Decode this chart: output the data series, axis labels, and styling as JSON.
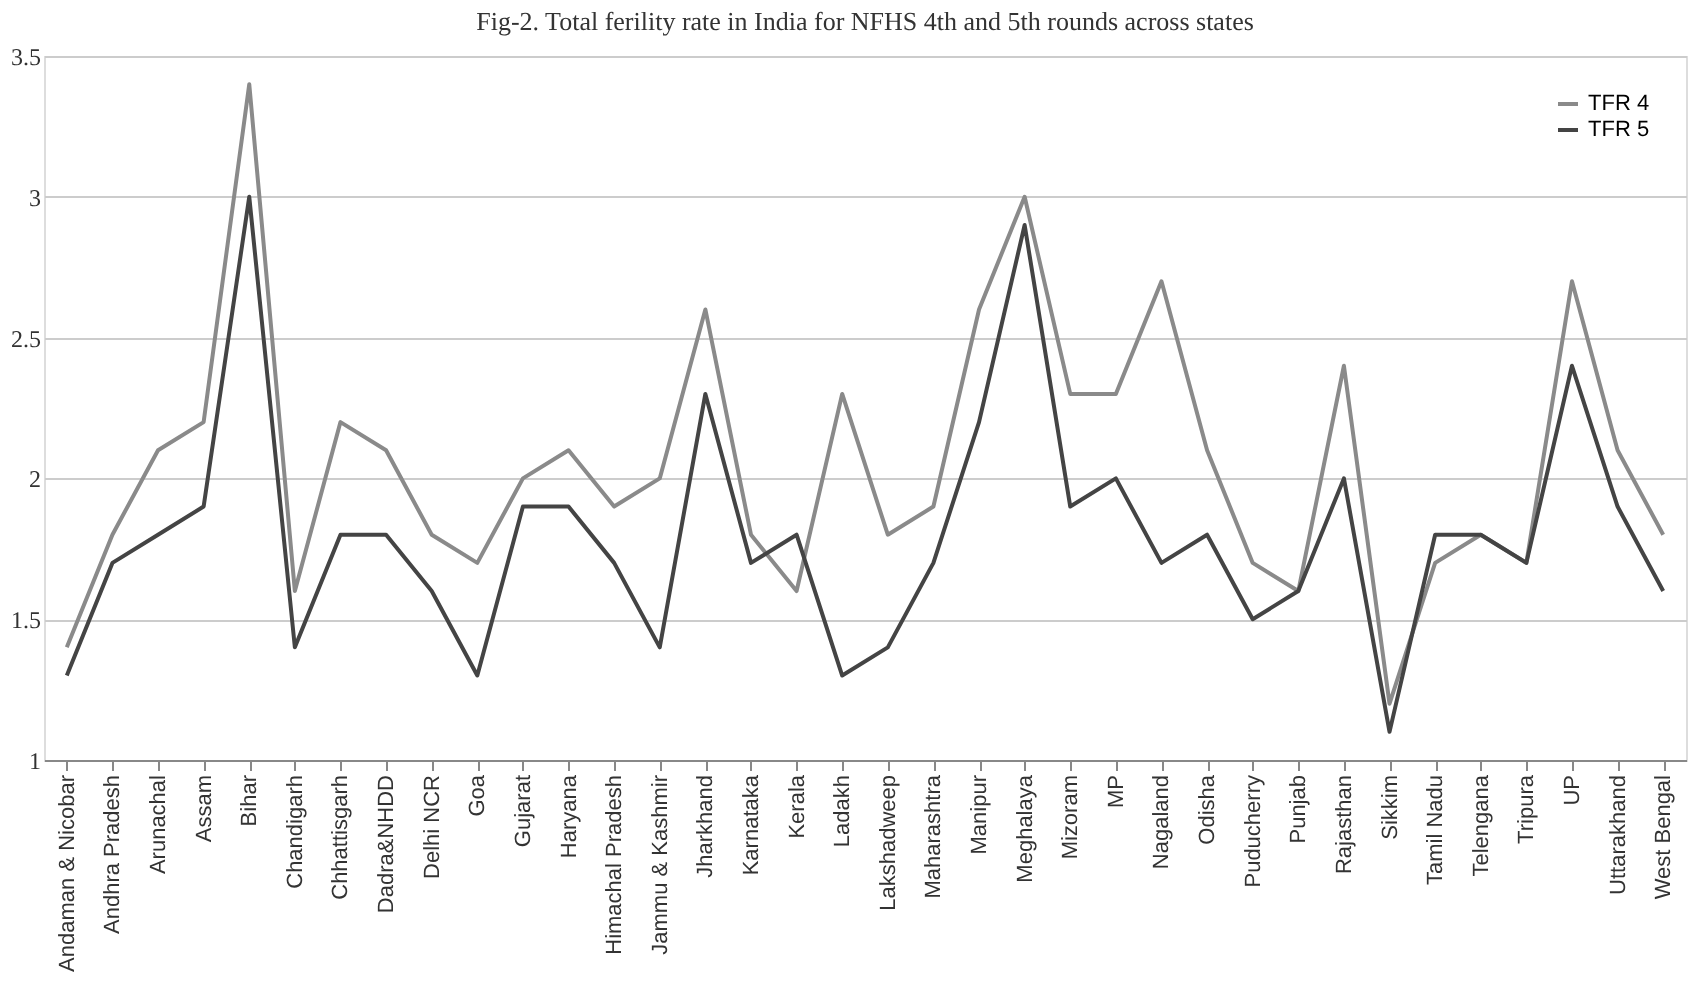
{
  "chart_data": {
    "type": "line",
    "title": "Fig-2. Total ferility rate in India for NFHS 4th and 5th rounds across states",
    "categories": [
      "Andaman & Nicobar",
      "Andhra Pradesh",
      "Arunachal",
      "Assam",
      "Bihar",
      "Chandigarh",
      "Chhattisgarh",
      "Dadra&NHDD",
      "Delhi NCR",
      "Goa",
      "Gujarat",
      "Haryana",
      "Himachal Pradesh",
      "Jammu & Kashmir",
      "Jharkhand",
      "Karnataka",
      "Kerala",
      "Ladakh",
      "Lakshadweep",
      "Maharashtra",
      "Manipur",
      "Meghalaya",
      "Mizoram",
      "MP",
      "Nagaland",
      "Odisha",
      "Puducherry",
      "Punjab",
      "Rajasthan",
      "Sikkim",
      "Tamil Nadu",
      "Telengana",
      "Tripura",
      "UP",
      "Uttarakhand",
      "West Bengal"
    ],
    "series": [
      {
        "name": "TFR 4",
        "color": "#8a8a8a",
        "values": [
          1.4,
          1.8,
          2.1,
          2.2,
          3.4,
          1.6,
          2.2,
          2.1,
          1.8,
          1.7,
          2.0,
          2.1,
          1.9,
          2.0,
          2.6,
          1.8,
          1.6,
          2.3,
          1.8,
          1.9,
          2.6,
          3.0,
          2.3,
          2.3,
          2.7,
          2.1,
          1.7,
          1.6,
          2.4,
          1.2,
          1.7,
          1.8,
          1.7,
          2.7,
          2.1,
          1.8
        ]
      },
      {
        "name": "TFR 5",
        "color": "#444444",
        "values": [
          1.3,
          1.7,
          1.8,
          1.9,
          3.0,
          1.4,
          1.8,
          1.8,
          1.6,
          1.3,
          1.9,
          1.9,
          1.7,
          1.4,
          2.3,
          1.7,
          1.8,
          1.3,
          1.4,
          1.7,
          2.2,
          2.9,
          1.9,
          2.0,
          1.7,
          1.8,
          1.5,
          1.6,
          2.0,
          1.1,
          1.8,
          1.8,
          1.7,
          2.4,
          1.9,
          1.6
        ]
      }
    ],
    "ylim": [
      1,
      3.5
    ],
    "yticks": [
      1,
      1.5,
      2,
      2.5,
      3,
      3.5
    ],
    "grid": "y",
    "legend": "top right",
    "marker": "none",
    "line_style": "solid"
  }
}
